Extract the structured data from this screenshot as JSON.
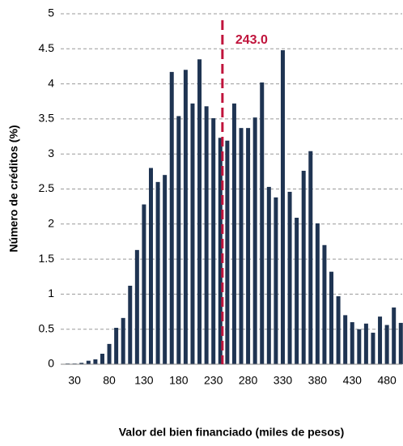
{
  "chart_data": {
    "type": "bar",
    "x_label": "Valor del bien financiado (miles de pesos)",
    "y_label": "Número de créditos (%)",
    "x": [
      20,
      30,
      40,
      50,
      60,
      70,
      80,
      90,
      100,
      110,
      120,
      130,
      140,
      150,
      160,
      170,
      180,
      190,
      200,
      210,
      220,
      230,
      240,
      250,
      260,
      270,
      280,
      290,
      300,
      310,
      320,
      330,
      340,
      350,
      360,
      370,
      380,
      390,
      400,
      410,
      420,
      430,
      440,
      450,
      460,
      470,
      480,
      490,
      500
    ],
    "values": [
      0.01,
      0.01,
      0.02,
      0.05,
      0.07,
      0.15,
      0.29,
      0.52,
      0.66,
      1.12,
      1.63,
      2.28,
      2.8,
      2.6,
      2.7,
      4.17,
      3.54,
      4.2,
      3.72,
      4.35,
      3.68,
      3.51,
      3.23,
      3.19,
      3.72,
      3.37,
      3.37,
      3.52,
      4.02,
      2.53,
      2.38,
      4.48,
      2.46,
      2.09,
      2.76,
      3.04,
      2.01,
      1.7,
      1.32,
      0.97,
      0.7,
      0.6,
      0.5,
      0.58,
      0.45,
      0.68,
      0.56,
      0.81,
      0.59
    ],
    "color": "#1f3452",
    "xlim": [
      10,
      502
    ],
    "xticks": [
      30,
      80,
      130,
      180,
      230,
      280,
      330,
      380,
      430,
      480
    ],
    "ylim": [
      0,
      5
    ],
    "yticks": [
      0,
      0.5,
      1,
      1.5,
      2,
      2.5,
      3,
      3.5,
      4,
      4.5,
      5
    ],
    "grid": true,
    "reference_line": {
      "value": 243.0,
      "label": "243.0",
      "color": "#c0143c"
    }
  }
}
